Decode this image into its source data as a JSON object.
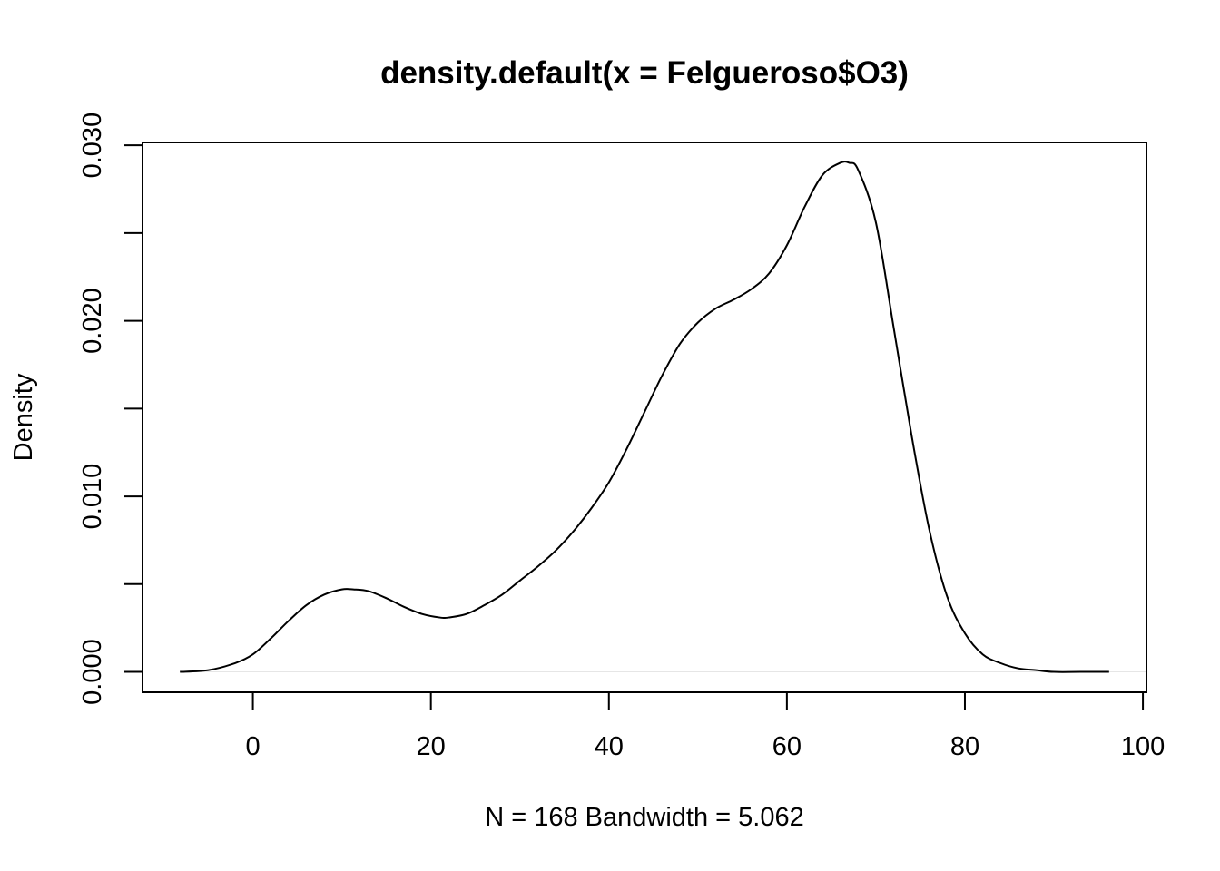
{
  "chart_data": {
    "type": "line",
    "title": "density.default(x = Felgueroso$O3)",
    "xlabel": "N = 168   Bandwidth = 5.062",
    "ylabel": "Density",
    "xlim": [
      -12.4,
      100.4
    ],
    "ylim": [
      -0.00116,
      0.03016
    ],
    "x_ticks": [
      0,
      20,
      40,
      60,
      80,
      100
    ],
    "x_tick_labels": [
      "0",
      "20",
      "40",
      "60",
      "80",
      "100"
    ],
    "y_ticks": [
      0.0,
      0.005,
      0.01,
      0.015,
      0.02,
      0.025,
      0.03
    ],
    "y_tick_labels": [
      "0.000",
      "",
      "0.010",
      "",
      "0.020",
      "",
      "0.030"
    ],
    "grid": false,
    "series": [
      {
        "x": [
          -8.2,
          -5,
          -2,
          0,
          2,
          4,
          6,
          8,
          10,
          11.3,
          13,
          15,
          17,
          19,
          21,
          22,
          24,
          26,
          28,
          30,
          32,
          34,
          36,
          38,
          40,
          42,
          44,
          46,
          48,
          50,
          52,
          54,
          56,
          58,
          60,
          62,
          64,
          66,
          67,
          68,
          70,
          72,
          74,
          76,
          78,
          80,
          82,
          84,
          86,
          88,
          90,
          93,
          96.2
        ],
        "y": [
          0.0,
          0.0001,
          0.0005,
          0.001,
          0.0019,
          0.0029,
          0.0038,
          0.0044,
          0.0047,
          0.0047,
          0.0046,
          0.0042,
          0.0037,
          0.0033,
          0.0031,
          0.0031,
          0.0033,
          0.0038,
          0.0044,
          0.0052,
          0.006,
          0.0069,
          0.008,
          0.0093,
          0.0108,
          0.0127,
          0.0148,
          0.0169,
          0.0187,
          0.0199,
          0.0207,
          0.0212,
          0.0218,
          0.0227,
          0.0243,
          0.0265,
          0.0283,
          0.029,
          0.029,
          0.0286,
          0.0256,
          0.0196,
          0.0135,
          0.0081,
          0.0043,
          0.0022,
          0.001,
          0.0005,
          0.0002,
          0.0001,
          0.0,
          0.0,
          0.0
        ]
      }
    ]
  }
}
